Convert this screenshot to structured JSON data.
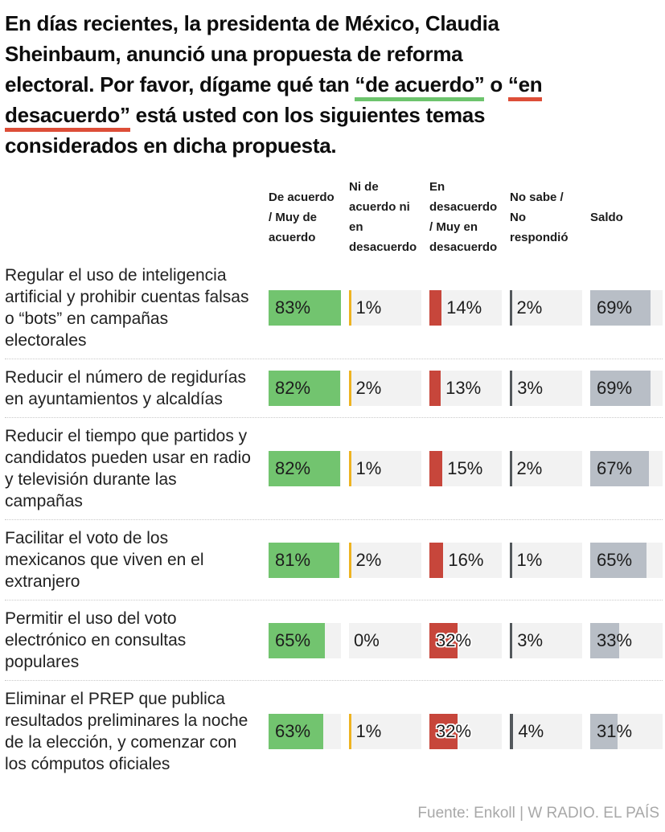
{
  "title": {
    "l1": "En días recientes, la presidenta de México, Claudia",
    "l2": "Sheinbaum, anunció una propuesta de reforma",
    "l3a": "electoral. Por favor, dígame qué tan ",
    "l3b": "“de acuerdo”",
    "l3c": " o ",
    "l3d": "“en",
    "l4a": "desacuerdo”",
    "l4b": " está usted con los siguientes temas",
    "l5": "considerados en dicha propuesta."
  },
  "columns": [
    {
      "key": "de_acuerdo",
      "header": "De acuerdo\n/ Muy de\nacuerdo",
      "color": "#72c46f"
    },
    {
      "key": "ni_ni",
      "header": "Ni de\nacuerdo ni\nen\ndesacuerdo",
      "color": "#eeb321"
    },
    {
      "key": "en_desacuerdo",
      "header": "En\ndesacuerdo\n/ Muy en\ndesacuerdo",
      "color": "#c7463b"
    },
    {
      "key": "no_sabe",
      "header": "No sabe /\nNo\nrespondió",
      "color": "#53585c"
    },
    {
      "key": "saldo",
      "header": "Saldo",
      "color": "#b8bec6"
    }
  ],
  "chart_data": {
    "type": "bar",
    "orientation": "horizontal",
    "title": "En días recientes, la presidenta de México, Claudia Sheinbaum, anunció una propuesta de reforma electoral. Por favor, dígame qué tan “de acuerdo” o “en desacuerdo” está usted con los siguientes temas considerados en dicha propuesta.",
    "categories": [
      "Regular el uso de inteligencia artificial y prohibir cuentas falsas o “bots” en campañas electorales",
      "Reducir el número de regidurías en ayuntamientos y alcaldías",
      "Reducir el tiempo que partidos y candidatos pueden usar en radio y televisión durante las campañas",
      "Facilitar el voto de los mexicanos que viven en el extranjero",
      "Permitir el uso del voto electrónico en consultas populares",
      "Eliminar el PREP que publica resultados preliminares la noche de la elección, y comenzar con los cómputos oficiales"
    ],
    "series": [
      {
        "name": "De acuerdo / Muy de acuerdo",
        "values": [
          83,
          82,
          82,
          81,
          65,
          63
        ]
      },
      {
        "name": "Ni de acuerdo ni en desacuerdo",
        "values": [
          1,
          2,
          1,
          2,
          0,
          1
        ]
      },
      {
        "name": "En desacuerdo / Muy en desacuerdo",
        "values": [
          14,
          13,
          15,
          16,
          32,
          32
        ]
      },
      {
        "name": "No sabe / No respondió",
        "values": [
          2,
          3,
          2,
          1,
          3,
          4
        ]
      },
      {
        "name": "Saldo",
        "values": [
          69,
          69,
          67,
          65,
          33,
          31
        ]
      }
    ],
    "value_suffix": "%",
    "bar_scale_max": 83,
    "track_color": "#f2f2f2",
    "legend_position": "top",
    "grid": false
  },
  "footer": {
    "source": "Fuente: Enkoll | W RADIO. EL PAÍS"
  }
}
